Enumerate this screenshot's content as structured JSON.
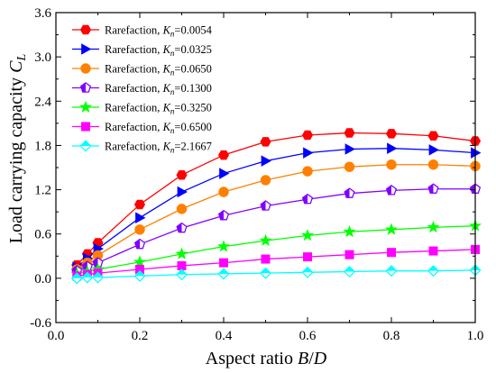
{
  "chart_data": {
    "type": "line",
    "xlabel_prefix": "Aspect ratio ",
    "xlabel_var": "B",
    "xlabel_sep": "/",
    "xlabel_var2": "D",
    "ylabel_prefix": "Load carrying capacity ",
    "ylabel_var": "C",
    "ylabel_sub": "L",
    "xlim": [
      0.0,
      1.0
    ],
    "ylim": [
      -0.6,
      3.6
    ],
    "xticks": [
      "0.0",
      "0.2",
      "0.4",
      "0.6",
      "0.8",
      "1.0"
    ],
    "yticks": [
      "-0.6",
      "0.0",
      "0.6",
      "1.2",
      "1.8",
      "2.4",
      "3.0",
      "3.6"
    ],
    "legend_position": "top-left",
    "x": [
      0.05,
      0.075,
      0.1,
      0.2,
      0.3,
      0.4,
      0.5,
      0.6,
      0.7,
      0.8,
      0.9,
      1.0
    ],
    "series": [
      {
        "label": "Rarefaction, ",
        "kvar": "K",
        "ksub": "n",
        "kval": "=0.0054",
        "color": "#ff0000",
        "marker": "hexagon",
        "values": [
          0.18,
          0.33,
          0.48,
          1.0,
          1.4,
          1.67,
          1.85,
          1.94,
          1.97,
          1.96,
          1.93,
          1.86
        ]
      },
      {
        "label": "Rarefaction, ",
        "kvar": "K",
        "ksub": "n",
        "kval": "=0.0325",
        "color": "#0000ff",
        "marker": "triangle-right",
        "values": [
          0.15,
          0.27,
          0.4,
          0.82,
          1.17,
          1.42,
          1.59,
          1.7,
          1.75,
          1.76,
          1.74,
          1.7
        ]
      },
      {
        "label": "Rarefaction, ",
        "kvar": "K",
        "ksub": "n",
        "kval": "=0.0650",
        "color": "#ff8000",
        "marker": "circle",
        "values": [
          0.12,
          0.21,
          0.31,
          0.66,
          0.94,
          1.17,
          1.33,
          1.45,
          1.51,
          1.54,
          1.54,
          1.52
        ]
      },
      {
        "label": "Rarefaction, ",
        "kvar": "K",
        "ksub": "n",
        "kval": "=0.1300",
        "color": "#8000ff",
        "marker": "pentagon-half",
        "values": [
          0.1,
          0.16,
          0.21,
          0.46,
          0.68,
          0.85,
          0.98,
          1.07,
          1.15,
          1.19,
          1.21,
          1.21
        ]
      },
      {
        "label": "Rarefaction, ",
        "kvar": "K",
        "ksub": "n",
        "kval": "=0.3250",
        "color": "#00ff00",
        "marker": "star",
        "values": [
          0.06,
          0.09,
          0.12,
          0.22,
          0.33,
          0.43,
          0.51,
          0.58,
          0.63,
          0.66,
          0.69,
          0.71
        ]
      },
      {
        "label": "Rarefaction, ",
        "kvar": "K",
        "ksub": "n",
        "kval": "=0.6500",
        "color": "#ff00ff",
        "marker": "square",
        "values": [
          0.03,
          0.05,
          0.07,
          0.12,
          0.17,
          0.21,
          0.26,
          0.29,
          0.32,
          0.35,
          0.37,
          0.39
        ]
      },
      {
        "label": "Rarefaction, ",
        "kvar": "K",
        "ksub": "n",
        "kval": "=2.1667",
        "color": "#00ffff",
        "marker": "diamond",
        "values": [
          0.0,
          0.01,
          0.01,
          0.03,
          0.05,
          0.06,
          0.07,
          0.08,
          0.09,
          0.1,
          0.1,
          0.11
        ]
      }
    ]
  }
}
